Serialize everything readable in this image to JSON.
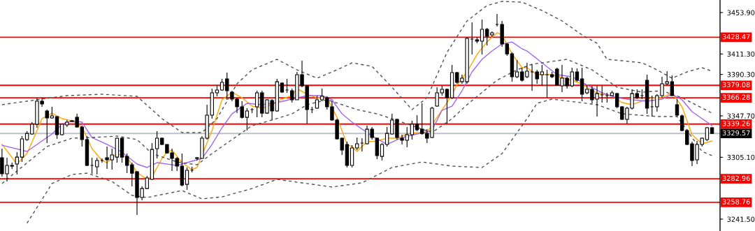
{
  "chart_data": {
    "type": "candlestick",
    "categories": [
      null,
      null,
      null,
      null,
      null,
      null,
      null,
      null,
      null,
      null,
      null,
      null,
      null,
      null,
      null,
      null,
      null,
      null,
      null,
      null,
      null,
      null,
      null,
      null,
      null,
      null,
      null,
      null,
      null,
      null,
      null,
      null,
      null,
      null,
      null,
      null,
      null,
      null,
      null,
      null,
      null,
      null,
      null,
      null,
      null,
      null,
      null,
      null,
      null,
      null,
      null,
      null,
      null,
      null,
      null,
      null,
      null,
      null,
      null,
      null,
      null,
      null,
      null,
      null,
      null,
      null,
      null,
      null,
      null,
      null,
      null,
      null,
      null,
      null,
      null,
      null,
      null,
      null,
      null,
      null,
      null,
      null,
      null,
      null,
      null,
      null,
      null,
      null,
      null,
      null,
      null,
      null,
      null,
      null,
      null,
      null,
      null,
      null,
      null,
      null,
      null,
      null,
      null,
      null,
      null,
      null,
      null,
      null,
      null,
      null,
      null,
      null,
      null,
      null,
      null,
      null,
      null,
      null,
      null,
      null,
      null,
      null,
      null,
      null,
      null,
      null,
      null,
      null,
      null,
      null,
      null,
      null,
      null,
      null,
      null,
      null,
      null,
      null,
      null,
      null,
      null,
      null,
      null
    ],
    "ohlc": [
      [
        3304.6,
        3314.0,
        3285.2,
        3288.1
      ],
      [
        3288.1,
        3304.6,
        3280.2,
        3296.7
      ],
      [
        3296.7,
        3299.6,
        3293.1,
        3296.0
      ],
      [
        3298.2,
        3310.4,
        3287.4,
        3305.3
      ],
      [
        3305.3,
        3326.9,
        3300.3,
        3324.0
      ],
      [
        3323.3,
        3331.9,
        3321.8,
        3329.7
      ],
      [
        3329.0,
        3341.2,
        3328.3,
        3339.1
      ],
      [
        3339.1,
        3366.3,
        3335.5,
        3362.8
      ],
      [
        3362.8,
        3366.3,
        3357.0,
        3359.9
      ],
      [
        3352.7,
        3354.1,
        3319.7,
        3345.5
      ],
      [
        3345.5,
        3357.0,
        3344.8,
        3347.7
      ],
      [
        3347.0,
        3347.0,
        3324.0,
        3328.3
      ],
      [
        3328.3,
        3339.8,
        3327.6,
        3339.1
      ],
      [
        3338.4,
        3343.4,
        3336.2,
        3341.2
      ],
      [
        3342.6,
        3343.4,
        3341.2,
        3341.9
      ],
      [
        3346.2,
        3349.8,
        3335.5,
        3336.2
      ],
      [
        3336.2,
        3337.6,
        3316.1,
        3323.3
      ],
      [
        3323.3,
        3326.9,
        3296.0,
        3296.7
      ],
      [
        3296.7,
        3304.6,
        3288.1,
        3296.7
      ],
      [
        3295.3,
        3304.6,
        3287.4,
        3301.8
      ],
      [
        3301.8,
        3303.9,
        3299.6,
        3301.8
      ],
      [
        3304.6,
        3316.1,
        3293.1,
        3302.5
      ],
      [
        3302.5,
        3314.0,
        3292.4,
        3307.5
      ],
      [
        3305.3,
        3325.4,
        3299.6,
        3324.7
      ],
      [
        3324.7,
        3325.4,
        3299.6,
        3305.3
      ],
      [
        3306.0,
        3308.9,
        3288.8,
        3296.7
      ],
      [
        3297.4,
        3299.6,
        3275.2,
        3288.8
      ],
      [
        3290.3,
        3291.0,
        3245.8,
        3263.7
      ],
      [
        3263.7,
        3275.2,
        3260.8,
        3273.0
      ],
      [
        3273.0,
        3285.9,
        3272.3,
        3283.8
      ],
      [
        3282.4,
        3319.7,
        3281.7,
        3313.2
      ],
      [
        3314.0,
        3331.9,
        3303.9,
        3324.7
      ],
      [
        3324.7,
        3325.4,
        3317.5,
        3318.3
      ],
      [
        3318.3,
        3318.3,
        3308.9,
        3309.6
      ],
      [
        3309.6,
        3314.0,
        3291.0,
        3303.9
      ],
      [
        3303.9,
        3305.3,
        3291.0,
        3296.0
      ],
      [
        3296.0,
        3308.9,
        3275.2,
        3276.6
      ],
      [
        3277.3,
        3294.6,
        3271.6,
        3291.7
      ],
      [
        3291.7,
        3295.3,
        3289.6,
        3291.7
      ],
      [
        3303.9,
        3305.3,
        3301.8,
        3304.6
      ],
      [
        3303.9,
        3326.9,
        3303.9,
        3324.7
      ],
      [
        3324.7,
        3359.2,
        3323.3,
        3348.4
      ],
      [
        3348.4,
        3375.7,
        3344.8,
        3371.4
      ],
      [
        3371.4,
        3379.3,
        3367.8,
        3374.2
      ],
      [
        3374.2,
        3385.7,
        3373.5,
        3382.1
      ],
      [
        3385.7,
        3392.2,
        3364.2,
        3373.5
      ],
      [
        3372.1,
        3373.5,
        3362.8,
        3364.9
      ],
      [
        3364.9,
        3366.3,
        3350.5,
        3357.0
      ],
      [
        3357.0,
        3362.8,
        3344.8,
        3346.2
      ],
      [
        3346.2,
        3355.6,
        3332.6,
        3352.7
      ],
      [
        3354.1,
        3355.6,
        3350.5,
        3354.1
      ],
      [
        3357.0,
        3373.5,
        3346.2,
        3371.4
      ],
      [
        3371.4,
        3373.5,
        3346.2,
        3350.5
      ],
      [
        3350.5,
        3364.9,
        3349.8,
        3364.2
      ],
      [
        3363.5,
        3364.9,
        3343.4,
        3352.7
      ],
      [
        3352.7,
        3385.7,
        3352.0,
        3382.8
      ],
      [
        3381.4,
        3382.1,
        3371.4,
        3372.1
      ],
      [
        3374.2,
        3385.7,
        3371.4,
        3374.2
      ],
      [
        3373.5,
        3375.7,
        3361.3,
        3364.2
      ],
      [
        3364.2,
        3392.9,
        3364.2,
        3390.0
      ],
      [
        3390.0,
        3404.4,
        3377.1,
        3378.5
      ],
      [
        3378.5,
        3379.3,
        3339.8,
        3354.1
      ],
      [
        3354.1,
        3357.0,
        3350.5,
        3354.1
      ],
      [
        3355.6,
        3368.5,
        3354.9,
        3364.2
      ],
      [
        3364.2,
        3375.7,
        3362.8,
        3367.8
      ],
      [
        3366.3,
        3367.8,
        3354.1,
        3357.0
      ],
      [
        3357.0,
        3362.8,
        3342.6,
        3343.4
      ],
      [
        3343.4,
        3344.8,
        3323.3,
        3324.0
      ],
      [
        3324.7,
        3325.4,
        3307.5,
        3312.5
      ],
      [
        3318.3,
        3321.1,
        3294.6,
        3296.7
      ],
      [
        3296.7,
        3317.5,
        3294.6,
        3314.7
      ],
      [
        3314.7,
        3325.4,
        3312.5,
        3319.0
      ],
      [
        3319.7,
        3324.7,
        3311.1,
        3319.7
      ],
      [
        3319.0,
        3337.6,
        3318.3,
        3334.0
      ],
      [
        3334.0,
        3336.2,
        3323.3,
        3325.4
      ],
      [
        3324.7,
        3325.4,
        3303.2,
        3306.8
      ],
      [
        3306.0,
        3319.7,
        3301.8,
        3318.3
      ],
      [
        3318.3,
        3336.2,
        3316.1,
        3329.7
      ],
      [
        3329.0,
        3349.8,
        3328.3,
        3343.4
      ],
      [
        3344.1,
        3344.8,
        3323.3,
        3325.4
      ],
      [
        3324.7,
        3328.3,
        3318.3,
        3322.6
      ],
      [
        3322.6,
        3336.2,
        3315.4,
        3328.3
      ],
      [
        3328.3,
        3342.6,
        3323.3,
        3339.1
      ],
      [
        3339.1,
        3348.4,
        3331.9,
        3333.3
      ],
      [
        3334.0,
        3360.6,
        3328.3,
        3329.7
      ],
      [
        3329.7,
        3334.0,
        3319.7,
        3324.7
      ],
      [
        3325.4,
        3357.0,
        3324.7,
        3355.6
      ],
      [
        3357.7,
        3377.1,
        3357.0,
        3371.4
      ],
      [
        3371.4,
        3378.5,
        3368.5,
        3375.0
      ],
      [
        3375.0,
        3375.7,
        3339.8,
        3366.3
      ],
      [
        3366.3,
        3400.1,
        3364.9,
        3392.2
      ],
      [
        3392.2,
        3392.9,
        3380.7,
        3382.1
      ],
      [
        3382.8,
        3390.0,
        3380.7,
        3386.4
      ],
      [
        3382.8,
        3428.8,
        3380.7,
        3427.3
      ],
      [
        3426.6,
        3443.8,
        3410.8,
        3426.6
      ],
      [
        3425.9,
        3428.8,
        3422.3,
        3424.5
      ],
      [
        3424.5,
        3446.7,
        3410.8,
        3436.7
      ],
      [
        3436.7,
        3438.1,
        3420.2,
        3429.5
      ],
      [
        3430.9,
        3434.5,
        3428.8,
        3433.1
      ],
      [
        3441.7,
        3452.4,
        3439.5,
        3441.7
      ],
      [
        3441.7,
        3445.3,
        3418.7,
        3421.6
      ],
      [
        3421.6,
        3422.3,
        3409.4,
        3411.5
      ],
      [
        3411.5,
        3413.0,
        3382.8,
        3387.9
      ],
      [
        3387.9,
        3405.1,
        3386.4,
        3392.9
      ],
      [
        3392.9,
        3397.2,
        3382.8,
        3384.3
      ],
      [
        3387.9,
        3402.2,
        3386.4,
        3393.6
      ],
      [
        3392.9,
        3400.8,
        3373.5,
        3392.9
      ],
      [
        3392.9,
        3395.0,
        3380.7,
        3385.7
      ],
      [
        3390.0,
        3400.1,
        3378.5,
        3392.9
      ],
      [
        3390.0,
        3395.0,
        3366.3,
        3390.0
      ],
      [
        3390.0,
        3392.9,
        3386.4,
        3387.9
      ],
      [
        3395.8,
        3397.2,
        3378.5,
        3379.3
      ],
      [
        3378.5,
        3400.1,
        3372.1,
        3386.4
      ],
      [
        3386.4,
        3387.9,
        3375.7,
        3378.5
      ],
      [
        3378.5,
        3397.2,
        3377.1,
        3392.9
      ],
      [
        3392.9,
        3396.5,
        3382.8,
        3384.3
      ],
      [
        3385.7,
        3397.2,
        3362.8,
        3369.9
      ],
      [
        3371.4,
        3379.3,
        3369.9,
        3375.0
      ],
      [
        3375.0,
        3378.5,
        3360.6,
        3364.2
      ],
      [
        3364.9,
        3378.5,
        3347.0,
        3370.6
      ],
      [
        3369.2,
        3378.5,
        3361.3,
        3369.2
      ],
      [
        3368.5,
        3371.4,
        3361.3,
        3368.5
      ],
      [
        3368.5,
        3373.5,
        3367.8,
        3371.4
      ],
      [
        3370.6,
        3371.4,
        3355.6,
        3357.0
      ],
      [
        3357.0,
        3357.7,
        3343.4,
        3344.1
      ],
      [
        3344.1,
        3357.0,
        3339.8,
        3355.6
      ],
      [
        3355.6,
        3375.0,
        3354.1,
        3370.6
      ],
      [
        3370.6,
        3375.0,
        3364.9,
        3366.3
      ],
      [
        3368.5,
        3375.0,
        3364.9,
        3368.5
      ],
      [
        3384.3,
        3390.0,
        3349.8,
        3355.6
      ],
      [
        3357.0,
        3368.5,
        3347.0,
        3357.0
      ],
      [
        3357.0,
        3369.9,
        3352.0,
        3368.5
      ],
      [
        3368.5,
        3387.9,
        3366.3,
        3380.7
      ],
      [
        3380.7,
        3393.6,
        3379.3,
        3382.8
      ],
      [
        3382.8,
        3389.3,
        3367.8,
        3368.5
      ],
      [
        3359.2,
        3364.9,
        3347.0,
        3348.4
      ],
      [
        3347.7,
        3349.1,
        3331.9,
        3332.6
      ],
      [
        3332.6,
        3334.0,
        3317.5,
        3318.3
      ],
      [
        3319.0,
        3321.1,
        3296.0,
        3301.8
      ],
      [
        3302.5,
        3321.8,
        3298.2,
        3318.3
      ],
      [
        3318.3,
        3325.4,
        3316.1,
        3324.7
      ],
      [
        3323.3,
        3336.2,
        3321.8,
        3335.5
      ],
      [
        3335.5,
        3336.2,
        3329.0,
        3329.7
      ]
    ],
    "series": [
      {
        "type": "line",
        "color": "#ffa500",
        "line_style": "solid",
        "values": [
          3318.3,
          null,
          null,
          3298.2,
          null,
          3308.9,
          null,
          3332.6,
          3344.8,
          null,
          3350.5,
          null,
          3344.8,
          null,
          3342.6,
          null,
          3336.2,
          null,
          3314.0,
          null,
          3301.8,
          3299.6,
          null,
          3308.9,
          null,
          3305.3,
          null,
          3289.6,
          null,
          3282.4,
          3285.2,
          null,
          3303.9,
          3310.4,
          3312.5,
          null,
          3299.6,
          null,
          3292.4,
          3294.6,
          null,
          null,
          3332.6,
          null,
          3364.2,
          null,
          3372.1,
          null,
          3366.3,
          null,
          3357.7,
          null,
          3355.6,
          null,
          3359.2,
          null,
          3364.9,
          null,
          3368.5,
          3375.7,
          null,
          3369.9,
          null,
          3366.3,
          null,
          3366.3,
          null,
          3346.2,
          null,
          3318.3,
          3316.1,
          3311.1,
          null,
          3321.1,
          null,
          3321.8,
          null,
          3324.7,
          null,
          3324.7,
          null,
          3329.0,
          null,
          3330.5,
          null,
          3330.5,
          null,
          3346.2,
          null,
          3361.3,
          null,
          3379.3,
          null,
          3392.9,
          null,
          3410.8,
          null,
          3423.7,
          null,
          3433.1,
          3430.9,
          null,
          3411.5,
          null,
          3397.2,
          3397.2,
          null,
          3390.0,
          null,
          null,
          3390.0,
          null,
          null,
          3385.7,
          null,
          null,
          3380.7,
          null,
          3373.5,
          null,
          3369.9,
          null,
          3368.5,
          null,
          3361.3,
          null,
          3359.2,
          null,
          3362.8,
          null,
          3366.3,
          null,
          3366.3,
          null,
          3371.4,
          null,
          3357.0,
          null,
          3328.3,
          null,
          3319.0,
          null,
          3321.8
        ]
      },
      {
        "type": "line",
        "color": "#a066ee",
        "line_style": "solid",
        "values": [
          3317.5,
          null,
          null,
          null,
          null,
          3311.1,
          null,
          null,
          null,
          null,
          3329.0,
          null,
          3339.1,
          null,
          3342.6,
          null,
          3341.2,
          null,
          3325.4,
          null,
          null,
          3318.3,
          null,
          null,
          3310.4,
          null,
          null,
          3298.2,
          null,
          3294.6,
          null,
          3299.6,
          null,
          null,
          null,
          3296.7,
          null,
          3299.6,
          null,
          null,
          3303.9,
          null,
          3318.3,
          null,
          3335.5,
          null,
          3349.8,
          null,
          null,
          3360.6,
          null,
          null,
          3359.2,
          null,
          null,
          3361.3,
          null,
          null,
          3364.9,
          null,
          null,
          3368.5,
          null,
          null,
          3368.5,
          null,
          3364.2,
          null,
          3349.8,
          null,
          3341.2,
          null,
          null,
          null,
          3326.9,
          null,
          null,
          3318.3,
          null,
          null,
          3325.4,
          null,
          null,
          3329.0,
          null,
          null,
          3332.6,
          null,
          3353.4,
          null,
          3357.7,
          null,
          3373.5,
          null,
          3392.9,
          null,
          3405.8,
          null,
          3414.4,
          null,
          3421.6,
          null,
          3423.7,
          null,
          3416.6,
          3414.4,
          null,
          null,
          3402.2,
          null,
          null,
          3390.0,
          null,
          null,
          3387.9,
          null,
          null,
          3379.3,
          null,
          null,
          3371.4,
          null,
          null,
          3366.3,
          null,
          null,
          3364.2,
          null,
          null,
          3362.8,
          null,
          null,
          3364.9,
          null,
          3369.9,
          null,
          3364.2,
          null,
          3352.0,
          null,
          3344.8,
          null,
          3337.6
        ]
      },
      {
        "type": "line",
        "color": "#505050",
        "line_style": "dashed",
        "values": [
          3359.2,
          null,
          null,
          null,
          null,
          null,
          null,
          null,
          null,
          null,
          null,
          null,
          null,
          3368.5,
          null,
          null,
          null,
          null,
          null,
          null,
          3369.9,
          null,
          null,
          null,
          null,
          null,
          null,
          3367.8,
          null,
          null,
          null,
          null,
          3344.8,
          null,
          null,
          null,
          3330.5,
          null,
          null,
          null,
          3330.5,
          null,
          null,
          3344.8,
          null,
          null,
          null,
          3380.7,
          null,
          null,
          3395.0,
          null,
          null,
          null,
          null,
          3405.8,
          null,
          null,
          null,
          3395.0,
          null,
          null,
          null,
          3386.4,
          null,
          null,
          null,
          3395.0,
          null,
          null,
          3402.2,
          null,
          null,
          null,
          3398.6,
          null,
          null,
          null,
          3377.1,
          null,
          null,
          null,
          3354.1,
          null,
          null,
          3366.3,
          null,
          null,
          null,
          3413.0,
          null,
          null,
          null,
          3445.3,
          null,
          null,
          null,
          3461.1,
          null,
          null,
          3465.4,
          null,
          null,
          null,
          3464.6,
          null,
          null,
          null,
          3456.0,
          null,
          null,
          null,
          3445.3,
          null,
          null,
          null,
          3430.9,
          null,
          null,
          3422.3,
          null,
          3405.8,
          null,
          null,
          3404.4,
          null,
          null,
          null,
          3402.2,
          null,
          null,
          3395.0,
          null,
          null,
          3386.4,
          null,
          null,
          3392.9,
          null,
          null,
          3397.2,
          null,
          3393.6
        ]
      },
      {
        "type": "line",
        "color": "#505050",
        "line_style": "dashed",
        "values": [
          3278.1,
          null,
          null,
          3291.0,
          null,
          null,
          null,
          null,
          null,
          3316.1,
          null,
          null,
          null,
          null,
          3324.7,
          null,
          null,
          null,
          3325.4,
          null,
          null,
          null,
          null,
          3326.9,
          null,
          null,
          null,
          3323.3,
          null,
          null,
          3308.9,
          null,
          null,
          null,
          null,
          3300.3,
          null,
          null,
          null,
          3297.4,
          null,
          null,
          3308.9,
          null,
          null,
          null,
          3323.3,
          null,
          null,
          null,
          3337.6,
          null,
          null,
          null,
          3343.4,
          null,
          null,
          null,
          3349.8,
          null,
          null,
          3359.2,
          null,
          null,
          null,
          3364.2,
          null,
          null,
          3359.2,
          null,
          null,
          3354.1,
          null,
          null,
          null,
          3349.8,
          null,
          null,
          null,
          null,
          3341.2,
          null,
          null,
          null,
          null,
          null,
          3330.5,
          null,
          null,
          null,
          3344.8,
          null,
          null,
          3359.2,
          null,
          null,
          null,
          null,
          null,
          3384.3,
          null,
          null,
          null,
          3395.0,
          null,
          null,
          3400.8,
          null,
          null,
          null,
          null,
          null,
          null,
          3405.8,
          null,
          null,
          null,
          null,
          3395.0,
          null,
          null,
          null,
          null,
          3377.1,
          null,
          null,
          null,
          null,
          3372.1,
          null,
          null,
          null,
          3373.5,
          null,
          null,
          null,
          3366.3,
          null,
          null,
          null,
          null,
          null,
          3350.5
        ]
      },
      {
        "type": "line",
        "color": "#505050",
        "line_style": "dashed",
        "values": [
          null,
          null,
          null,
          null,
          null,
          3237.2,
          null,
          null,
          null,
          null,
          3278.1,
          null,
          null,
          null,
          3287.4,
          null,
          null,
          3288.8,
          null,
          null,
          null,
          null,
          3280.2,
          null,
          null,
          null,
          3265.9,
          null,
          null,
          3263.7,
          null,
          null,
          null,
          null,
          null,
          null,
          3270.9,
          null,
          null,
          null,
          3262.3,
          null,
          null,
          null,
          3264.4,
          null,
          null,
          null,
          null,
          null,
          3273.0,
          null,
          null,
          null,
          null,
          3282.4,
          null,
          null,
          null,
          null,
          3278.8,
          null,
          null,
          null,
          null,
          null,
          3274.5,
          null,
          null,
          null,
          null,
          null,
          3278.8,
          null,
          null,
          null,
          null,
          null,
          3294.6,
          null,
          null,
          null,
          null,
          null,
          3300.3,
          null,
          null,
          null,
          null,
          null,
          3296.0,
          null,
          null,
          null,
          null,
          null,
          3294.6,
          null,
          null,
          null,
          3308.9,
          null,
          null,
          null,
          null,
          3344.8,
          null,
          3360.6,
          null,
          null,
          3364.9,
          null,
          null,
          null,
          null,
          null,
          null,
          null,
          null,
          3359.2,
          null,
          null,
          null,
          null,
          3349.8,
          null,
          null,
          null,
          null,
          null,
          null,
          3347.0,
          null,
          null,
          null,
          3347.0,
          null,
          null,
          null,
          null,
          3311.1,
          null,
          3306.8
        ]
      }
    ],
    "ref_lines": [
      {
        "axis": "y",
        "value": 3428.47,
        "label": "3428.47",
        "color": "#ff0000"
      },
      {
        "axis": "y",
        "value": 3379.08,
        "label": "3379.08",
        "color": "#ff0000"
      },
      {
        "axis": "y",
        "value": 3366.28,
        "label": "3366.28",
        "color": "#ff0000"
      },
      {
        "axis": "y",
        "value": 3339.26,
        "label": "3339.26",
        "color": "#ff0000"
      },
      {
        "axis": "y",
        "value": 3329.57,
        "label": "3329.57",
        "color": "#b8c0c8"
      },
      {
        "axis": "y",
        "value": 3282.96,
        "label": "3282.96",
        "color": "#ff0000"
      },
      {
        "axis": "y",
        "value": 3258.76,
        "label": "3258.76",
        "color": "#ff0000"
      }
    ],
    "ylim": [
      3229.3,
      3466.8
    ],
    "yticks": [
      {
        "value": 3453.9,
        "label": "3453.90"
      },
      {
        "value": 3411.3,
        "label": "3411.30"
      },
      {
        "value": 3390.3,
        "label": "3390.30"
      },
      {
        "value": 3347.7,
        "label": "3347.70"
      },
      {
        "value": 3305.1,
        "label": "3305.10"
      },
      {
        "value": 3241.5,
        "label": "3241.50"
      }
    ],
    "tick_labels": "y",
    "grid": false
  }
}
